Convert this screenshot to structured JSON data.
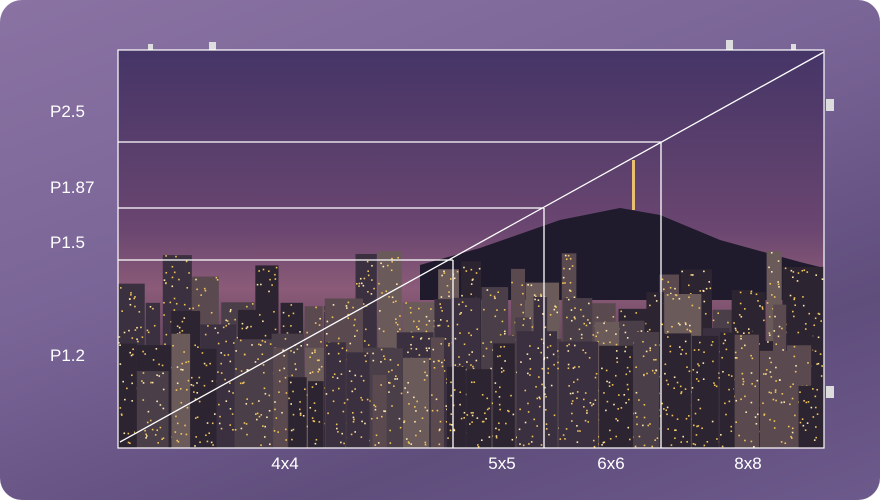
{
  "pitch_labels": [
    "P2.5",
    "P1.87",
    "P1.5",
    "P1.2"
  ],
  "module_labels": [
    "4x4",
    "5x5",
    "6x6",
    "8x8"
  ],
  "colors": {
    "background": "#7a6597",
    "sky_top": "#443566",
    "sky_horizon": "#8a5a78",
    "guide_lines": "#ffffff"
  }
}
